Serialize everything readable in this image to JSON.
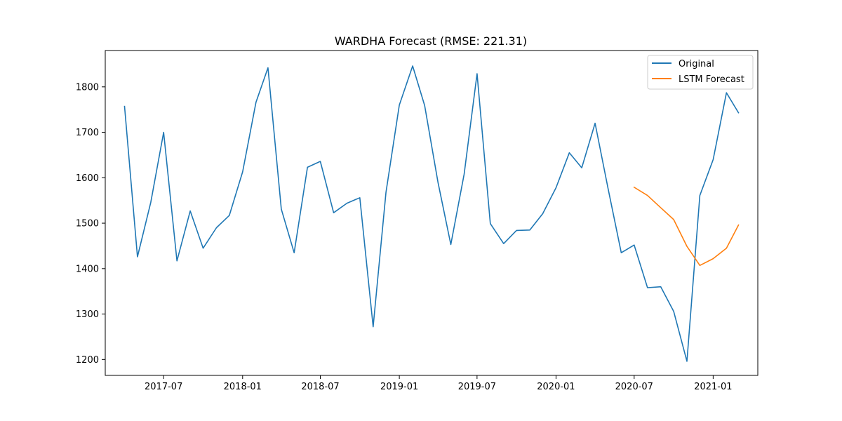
{
  "chart_data": {
    "type": "line",
    "title": "WARDHA Forecast (RMSE: 221.31)",
    "xlabel": "",
    "ylabel": "",
    "x_axis": "date",
    "xlim": [
      "2017-02-15",
      "2021-04-15"
    ],
    "ylim": [
      1165,
      1880
    ],
    "x_ticks": [
      "2017-07",
      "2018-01",
      "2018-07",
      "2019-01",
      "2019-07",
      "2020-01",
      "2020-07",
      "2021-01"
    ],
    "y_ticks": [
      1200,
      1300,
      1400,
      1500,
      1600,
      1700,
      1800
    ],
    "grid": false,
    "legend": {
      "position": "top-right"
    },
    "series": [
      {
        "name": "Original",
        "color": "#1f77b4",
        "points": [
          [
            "2017-04-01",
            1757
          ],
          [
            "2017-05-01",
            1426
          ],
          [
            "2017-06-01",
            1546
          ],
          [
            "2017-07-01",
            1700
          ],
          [
            "2017-08-01",
            1417
          ],
          [
            "2017-09-01",
            1527
          ],
          [
            "2017-10-01",
            1445
          ],
          [
            "2017-11-01",
            1490
          ],
          [
            "2017-12-01",
            1517
          ],
          [
            "2018-01-01",
            1613
          ],
          [
            "2018-02-01",
            1766
          ],
          [
            "2018-03-01",
            1842
          ],
          [
            "2018-04-01",
            1531
          ],
          [
            "2018-05-01",
            1435
          ],
          [
            "2018-06-01",
            1623
          ],
          [
            "2018-07-01",
            1636
          ],
          [
            "2018-08-01",
            1523
          ],
          [
            "2018-09-01",
            1544
          ],
          [
            "2018-10-01",
            1556
          ],
          [
            "2018-11-01",
            1272
          ],
          [
            "2018-12-01",
            1568
          ],
          [
            "2019-01-01",
            1760
          ],
          [
            "2019-02-01",
            1846
          ],
          [
            "2019-03-01",
            1759
          ],
          [
            "2019-04-01",
            1590
          ],
          [
            "2019-05-01",
            1453
          ],
          [
            "2019-06-01",
            1608
          ],
          [
            "2019-07-01",
            1829
          ],
          [
            "2019-08-01",
            1499
          ],
          [
            "2019-09-01",
            1455
          ],
          [
            "2019-10-01",
            1484
          ],
          [
            "2019-11-01",
            1485
          ],
          [
            "2019-12-01",
            1521
          ],
          [
            "2020-01-01",
            1578
          ],
          [
            "2020-02-01",
            1655
          ],
          [
            "2020-03-01",
            1622
          ],
          [
            "2020-04-01",
            1720
          ],
          [
            "2020-05-01",
            1577
          ],
          [
            "2020-06-01",
            1435
          ],
          [
            "2020-07-01",
            1452
          ],
          [
            "2020-08-01",
            1358
          ],
          [
            "2020-09-01",
            1360
          ],
          [
            "2020-10-01",
            1306
          ],
          [
            "2020-11-01",
            1196
          ],
          [
            "2020-12-01",
            1561
          ],
          [
            "2021-01-01",
            1640
          ],
          [
            "2021-02-01",
            1787
          ],
          [
            "2021-03-01",
            1743
          ]
        ]
      },
      {
        "name": "LSTM Forecast",
        "color": "#ff7f0e",
        "points": [
          [
            "2020-07-01",
            1579
          ],
          [
            "2020-08-01",
            1561
          ],
          [
            "2020-09-01",
            1534
          ],
          [
            "2020-10-01",
            1508
          ],
          [
            "2020-11-01",
            1449
          ],
          [
            "2020-12-01",
            1407
          ],
          [
            "2021-01-01",
            1422
          ],
          [
            "2021-02-01",
            1445
          ],
          [
            "2021-03-01",
            1496
          ]
        ]
      }
    ]
  }
}
